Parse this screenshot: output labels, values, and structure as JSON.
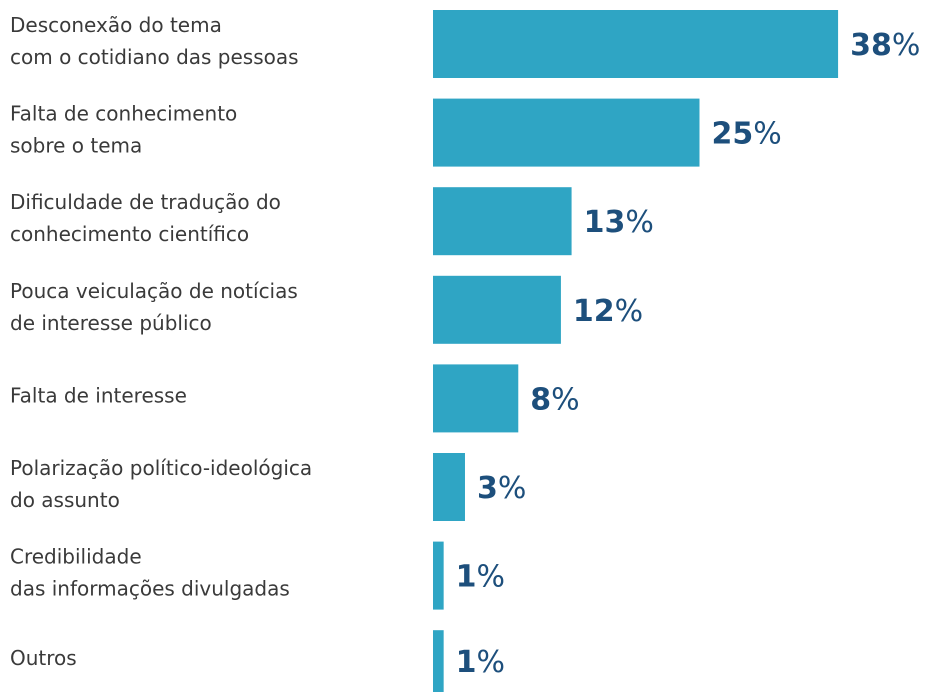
{
  "chart_data": {
    "type": "bar",
    "orientation": "horizontal",
    "categories": [
      "Desconexão do tema\ncom o cotidiano das pessoas",
      "Falta de conhecimento\nsobre o tema",
      "Dificuldade de tradução do\nconhecimento científico",
      "Pouca veiculação de notícias\nde interesse público",
      "Falta de interesse",
      "Polarização político-ideológica\ndo assunto",
      "Credibilidade\ndas informações divulgadas",
      "Outros"
    ],
    "values": [
      38,
      25,
      13,
      12,
      8,
      3,
      1,
      1
    ],
    "value_labels": [
      "38%",
      "25%",
      "13%",
      "12%",
      "8%",
      "3%",
      "1%",
      "1%"
    ],
    "color": "#2fa5c4"
  }
}
